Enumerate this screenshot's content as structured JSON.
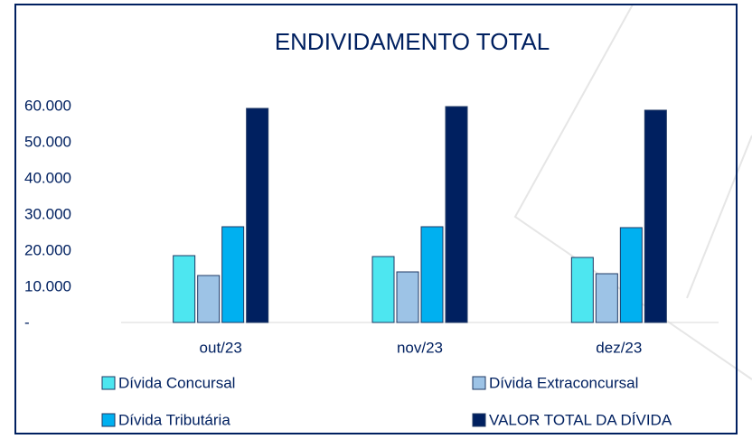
{
  "chart_data": {
    "type": "bar",
    "title": "ENDIVIDAMENTO TOTAL",
    "categories": [
      "out/23",
      "nov/23",
      "dez/23"
    ],
    "series": [
      {
        "name": "Dívida Concursal",
        "color": "#4de6f0",
        "values": [
          18500,
          18250,
          18000
        ]
      },
      {
        "name": "Dívida Extraconcursal",
        "color": "#9dc3e6",
        "values": [
          13000,
          14000,
          13500
        ]
      },
      {
        "name": "Dívida Tributária",
        "color": "#00b0f0",
        "values": [
          26500,
          26500,
          26250
        ]
      },
      {
        "name": "VALOR TOTAL DA DÍVIDA",
        "color": "#002060",
        "values": [
          59250,
          59750,
          58750
        ]
      }
    ],
    "ylim": [
      0,
      60000
    ],
    "yticks": [
      {
        "value": 0,
        "label": "-"
      },
      {
        "value": 10000,
        "label": "10.000"
      },
      {
        "value": 20000,
        "label": "20.000"
      },
      {
        "value": 30000,
        "label": "30.000"
      },
      {
        "value": 40000,
        "label": "40.000"
      },
      {
        "value": 50000,
        "label": "50.000"
      },
      {
        "value": 60000,
        "label": "60.000"
      }
    ],
    "grid": false
  }
}
